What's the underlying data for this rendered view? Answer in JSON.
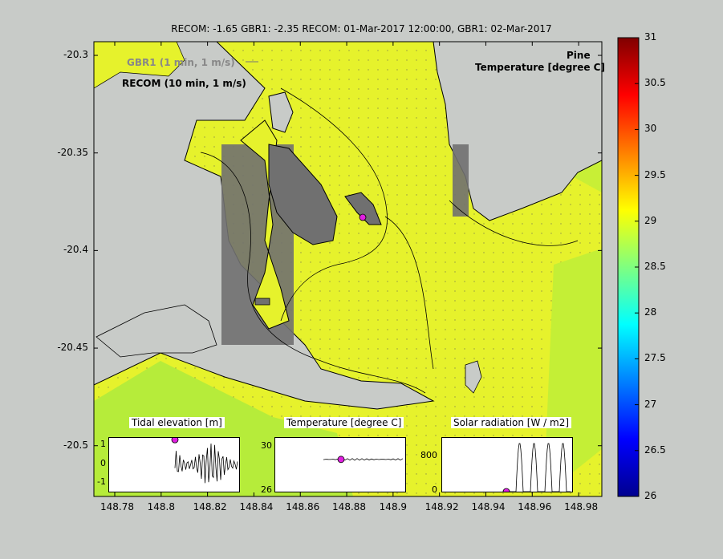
{
  "title": "RECOM: -1.65 GBR1: -2.35 RECOM: 01-Mar-2017 12:00:00, GBR1: 02-Mar-2017",
  "map": {
    "location_label": "Pine",
    "field_label": "Temperature [degree C]",
    "legend_gbr1": "GBR1 (1 min, 1 m/s)",
    "legend_recom": "RECOM (10 min, 1 m/s)",
    "colors": {
      "water": "#e6f22c",
      "land": "#c8cbc8",
      "shadow": "#707070",
      "coastline": "#000000",
      "marker": "#e020e0"
    }
  },
  "chart_data": [
    {
      "type": "heatmap",
      "title": "RECOM: -1.65 GBR1: -2.35 RECOM: 01-Mar-2017 12:00:00, GBR1: 02-Mar-2017",
      "x_ticks": [
        "148.78",
        "148.8",
        "148.82",
        "148.84",
        "148.86",
        "148.88",
        "148.9",
        "148.92",
        "148.94",
        "148.96",
        "148.98"
      ],
      "y_ticks": [
        "-20.3",
        "-20.35",
        "-20.4",
        "-20.45",
        "-20.5"
      ],
      "xlim": [
        148.771,
        148.99
      ],
      "ylim": [
        -20.526,
        -20.293
      ],
      "colorbar": {
        "label": "Temperature [degree C]",
        "range": [
          26,
          31
        ],
        "ticks": [
          "31",
          "30.5",
          "30",
          "29.5",
          "29",
          "28.5",
          "28",
          "27.5",
          "27",
          "26.5",
          "26"
        ],
        "colormap": "jet"
      }
    },
    {
      "type": "line",
      "title": "Tidal elevation [m]",
      "y_ticks": [
        "1",
        "0",
        "-1"
      ],
      "ylim": [
        -1.5,
        1.5
      ],
      "current_value": 1.4
    },
    {
      "type": "line",
      "title": "Temperature [degree C]",
      "y_ticks": [
        "30",
        "26"
      ],
      "ylim": [
        26,
        31
      ],
      "current_value": 29
    },
    {
      "type": "line",
      "title": "Solar radiation [W / m2]",
      "y_ticks": [
        "800",
        "0"
      ],
      "ylim": [
        0,
        1100
      ],
      "current_value": 0
    }
  ]
}
